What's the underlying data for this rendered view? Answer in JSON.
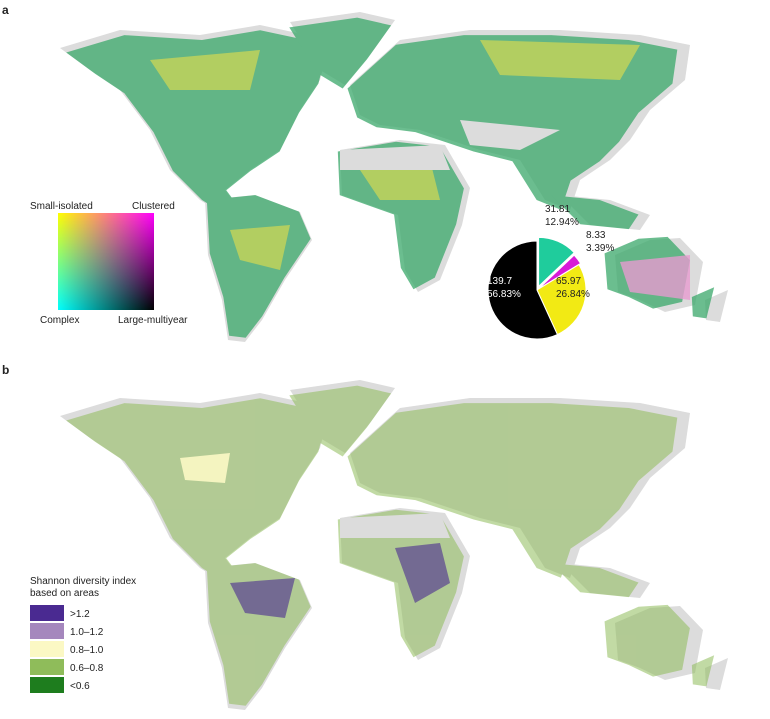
{
  "panel_a": {
    "label": "a",
    "bivariate_legend": {
      "top_left": "Small-isolated",
      "top_right": "Clustered",
      "bottom_left": "Complex",
      "bottom_right": "Large-multiyear"
    }
  },
  "chart_data": {
    "type": "pie",
    "values": [
      31.81,
      8.33,
      65.97,
      139.7
    ],
    "percent_labels": [
      "12.94%",
      "3.39%",
      "26.84%",
      "56.83%"
    ],
    "colors": [
      "#1fcc9c",
      "#d81bd8",
      "#f2ea14",
      "#000000"
    ]
  },
  "panel_b": {
    "label": "b",
    "legend": {
      "title": [
        "Shannon diversity index",
        "based on areas"
      ],
      "items": [
        {
          "label": ">1.2",
          "color": "#4a2a91"
        },
        {
          "label": "1.0–1.2",
          "color": "#a587bd"
        },
        {
          "label": "0.8–1.0",
          "color": "#fbf8c4"
        },
        {
          "label": "0.6–0.8",
          "color": "#8fbc5a"
        },
        {
          "label": "<0.6",
          "color": "#1e7d1e"
        }
      ]
    }
  }
}
